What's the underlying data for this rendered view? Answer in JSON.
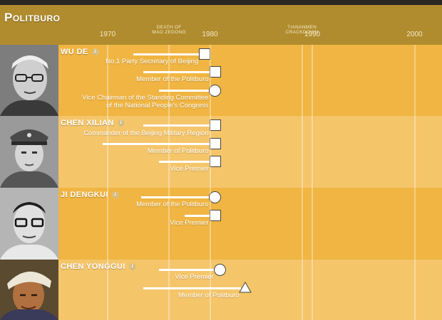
{
  "header": {
    "title": "Politburo"
  },
  "axis": {
    "years": [
      {
        "label": "1970",
        "value": 1970
      },
      {
        "label": "1980",
        "value": 1980
      },
      {
        "label": "1990",
        "value": 1990
      },
      {
        "label": "2000",
        "value": 2000
      }
    ],
    "events": [
      {
        "line1": "DEATH OF",
        "line2": "MAO ZEDONG",
        "value": 1976
      },
      {
        "line1": "TIANANMEN",
        "line2": "CRACKDOWN",
        "value": 1989
      }
    ]
  },
  "people": [
    {
      "name": "WU DE",
      "info_icon": "info-icon",
      "positions": [
        {
          "line1": "No.1 Party Secretary of Beijing",
          "line2": "",
          "start": 1972.5,
          "end": 1979,
          "marker": "square"
        },
        {
          "line1": "Member of the Politburo",
          "line2": "",
          "start": 1973.5,
          "end": 1980,
          "marker": "square"
        },
        {
          "line1": "Vice Chairman of the Standing Committee",
          "line2": "of the National People's Congress",
          "start": 1975,
          "end": 1980,
          "marker": "circle"
        }
      ]
    },
    {
      "name": "CHEN XILIAN",
      "info_icon": "info-icon",
      "positions": [
        {
          "line1": "Commander of the Beijing Military Region",
          "line2": "",
          "start": 1973.5,
          "end": 1980,
          "marker": "square"
        },
        {
          "line1": "Member of Politburo",
          "line2": "",
          "start": 1969.5,
          "end": 1980,
          "marker": "square"
        },
        {
          "line1": "Vice Premier",
          "line2": "",
          "start": 1975,
          "end": 1980,
          "marker": "square"
        }
      ]
    },
    {
      "name": "JI DENGKUI",
      "info_icon": "info-icon",
      "positions": [
        {
          "line1": "Member of the Politburo",
          "line2": "",
          "start": 1973.3,
          "end": 1980,
          "marker": "circle"
        },
        {
          "line1": "Vice Premier",
          "line2": "",
          "start": 1977.5,
          "end": 1980,
          "marker": "square"
        }
      ]
    },
    {
      "name": "CHEN YONGGUI",
      "info_icon": "info-icon",
      "positions": [
        {
          "line1": "Vice Premier",
          "line2": "",
          "start": 1975,
          "end": 1980.5,
          "marker": "circle"
        },
        {
          "line1": "Member of Politburo",
          "line2": "",
          "start": 1973.5,
          "end": 1983,
          "marker": "triangle"
        }
      ]
    }
  ],
  "colors": {
    "header_bg": "#b08c2e",
    "band_dark": "#f0b542",
    "band_light": "#f5c56a",
    "topstrip": "#2c2723"
  }
}
